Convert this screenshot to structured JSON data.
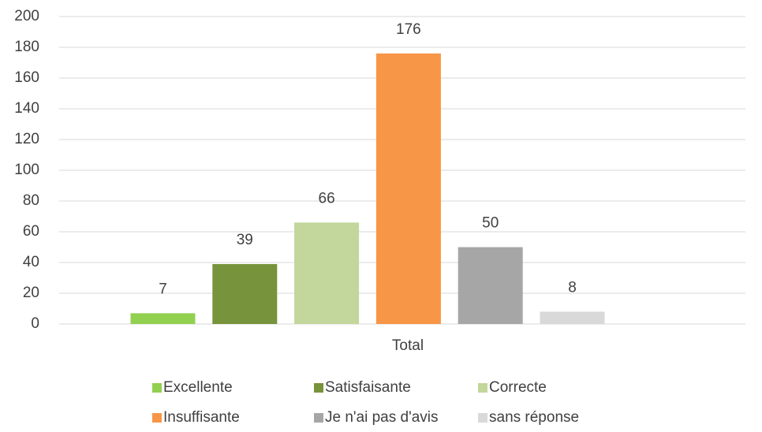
{
  "chart_data": {
    "type": "bar",
    "categories": [
      "Total"
    ],
    "series": [
      {
        "name": "Excellente",
        "color": "#92d050",
        "values": [
          7
        ]
      },
      {
        "name": "Satisfaisante",
        "color": "#77933c",
        "values": [
          39
        ]
      },
      {
        "name": "Correcte",
        "color": "#c3d69b",
        "values": [
          66
        ]
      },
      {
        "name": "Insuffisante",
        "color": "#f79646",
        "values": [
          176
        ]
      },
      {
        "name": "Je n'ai pas d'avis",
        "color": "#a6a6a6",
        "values": [
          50
        ]
      },
      {
        "name": "sans réponse",
        "color": "#d9d9d9",
        "values": [
          8
        ]
      }
    ],
    "ylim": [
      0,
      200
    ],
    "yticks": [
      0,
      20,
      40,
      60,
      80,
      100,
      120,
      140,
      160,
      180,
      200
    ],
    "grid": true,
    "legend": "bottom"
  }
}
